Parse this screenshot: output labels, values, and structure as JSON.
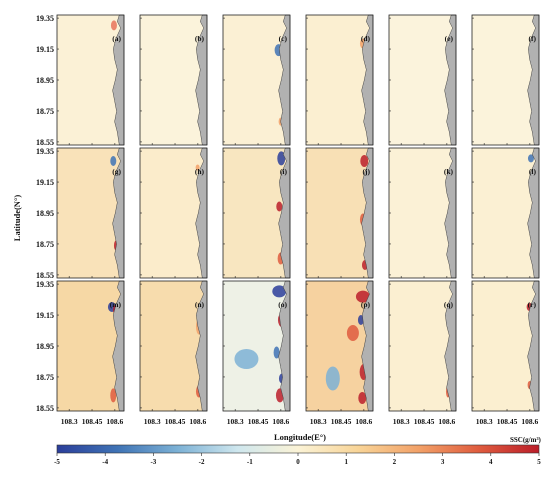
{
  "chart_data": {
    "type": "heatmap",
    "title": "",
    "xlabel": "Longitude(E°)",
    "ylabel": "Latitude(N°)",
    "x_ticks": [
      "108.3",
      "108.45",
      "108.6"
    ],
    "y_ticks": [
      "19.35",
      "19.15",
      "18.95",
      "18.75",
      "18.55"
    ],
    "xlim": [
      108.22,
      108.66
    ],
    "ylim": [
      18.53,
      19.37
    ],
    "grid": "3 rows x 6 columns of map panels",
    "panels": [
      "(a)",
      "(b)",
      "(c)",
      "(d)",
      "(e)",
      "(f)",
      "(g)",
      "(h)",
      "(i)",
      "(j)",
      "(k)",
      "(l)",
      "(m)",
      "(n)",
      "(o)",
      "(p)",
      "(q)",
      "(r)"
    ],
    "colorbar": {
      "label": "SSC(g/m³)",
      "ticks": [
        "-5",
        "-4",
        "-3",
        "-2",
        "-1",
        "0",
        "1",
        "2",
        "3",
        "4",
        "5"
      ],
      "range": [
        -5,
        5
      ],
      "colors": [
        "#2b3e9a",
        "#3f73b5",
        "#7cb1d5",
        "#cfe7ee",
        "#fbf3d6",
        "#f8d497",
        "#f2a168",
        "#df5c3e",
        "#bb1e2a"
      ]
    },
    "land_color": "#b1b1b1",
    "background_color": "#fbf1d6"
  }
}
